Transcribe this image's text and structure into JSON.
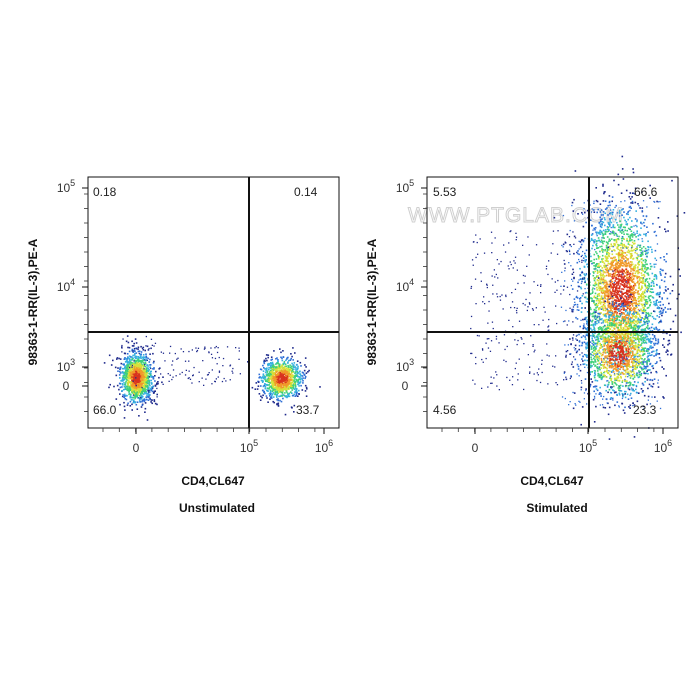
{
  "watermark": "WWW.PTGLAB.COM",
  "chart_data": [
    {
      "type": "scatter",
      "subtitle": "Unstimulated",
      "xlabel": "CD4,CL647",
      "ylabel": "98363-1-RR(IL-3),PE-A",
      "x_scale": "biexponential",
      "y_scale": "biexponential",
      "x_ticks": [
        "0",
        "10^5",
        "10^6"
      ],
      "y_ticks": [
        "0",
        "10^3",
        "10^4",
        "10^5"
      ],
      "quadrant_gates": {
        "x": "~10^5",
        "y": "~3x10^3"
      },
      "quadrants": {
        "upper_left": "0.18",
        "upper_right": "0.14",
        "lower_left": "66.0",
        "lower_right": "33.7"
      },
      "populations": [
        {
          "name": "CD4- IL-3-",
          "x_center": "0",
          "y_center": "~3x10^2",
          "percent": "66.0"
        },
        {
          "name": "CD4+ IL-3-",
          "x_center": "~3x10^5",
          "y_center": "~3x10^2",
          "percent": "33.7"
        }
      ]
    },
    {
      "type": "scatter",
      "subtitle": "Stimulated",
      "xlabel": "CD4,CL647",
      "ylabel": "98363-1-RR(IL-3),PE-A",
      "x_scale": "biexponential",
      "y_scale": "biexponential",
      "x_ticks": [
        "0",
        "10^5",
        "10^6"
      ],
      "y_ticks": [
        "0",
        "10^3",
        "10^4",
        "10^5"
      ],
      "quadrant_gates": {
        "x": "~10^5",
        "y": "~3x10^3"
      },
      "quadrants": {
        "upper_left": "5.53",
        "upper_right": "66.6",
        "lower_left": "4.56",
        "lower_right": "23.3"
      },
      "populations": [
        {
          "name": "CD4+ IL-3+",
          "x_center": "~3x10^5",
          "y_center": "~6x10^3",
          "percent": "66.6"
        },
        {
          "name": "CD4+ IL-3-",
          "x_center": "~3x10^5",
          "y_center": "~10^3",
          "percent": "23.3"
        }
      ]
    }
  ],
  "density_colors": [
    "#1f2a8c",
    "#2f6fd6",
    "#35b0e0",
    "#3fd07a",
    "#d6e23a",
    "#f19a2a",
    "#d8321e"
  ]
}
